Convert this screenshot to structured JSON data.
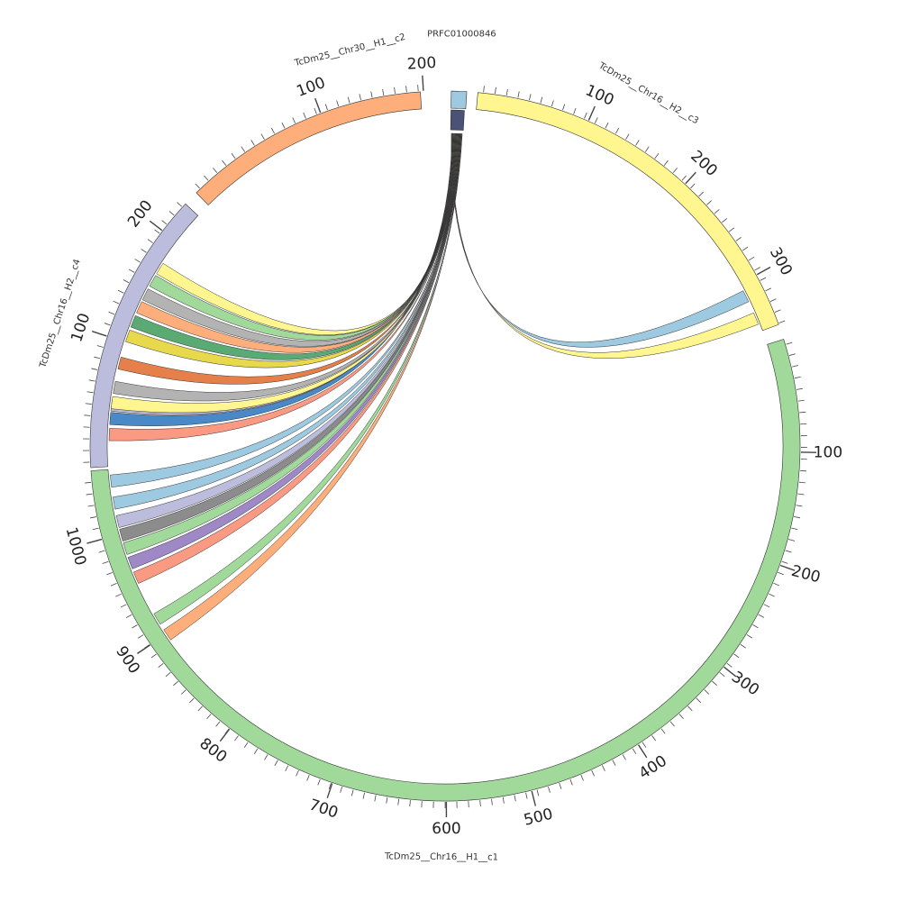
{
  "segments": [
    {
      "id": "c2",
      "label": "TcDm25__Chr30__H1__c2",
      "length": 230,
      "color": "#fdae7b",
      "major_ticks": [
        100,
        200
      ]
    },
    {
      "id": "q",
      "label": "PRFC01000846",
      "length": 18,
      "color": "#9ecae1",
      "major_ticks": []
    },
    {
      "id": "c3",
      "label": "TcDm25__Chr16__H2__c3",
      "length": 340,
      "color": "#fff68f",
      "major_ticks": [
        100,
        200,
        300
      ]
    },
    {
      "id": "c1",
      "label": "TcDm25__Chr16__H1__c1",
      "length": 1050,
      "color": "#a1d99b",
      "major_ticks": [
        100,
        200,
        300,
        400,
        500,
        600,
        700,
        800,
        900,
        1000
      ]
    },
    {
      "id": "c4",
      "label": "TcDm25__Chr16__H2__c4",
      "length": 230,
      "color": "#bcbddc",
      "major_ticks": [
        100,
        200
      ]
    }
  ],
  "links": [
    {
      "target": "c3",
      "pos": 306,
      "color": "#9ecae1"
    },
    {
      "target": "c3",
      "pos": 328,
      "color": "#fff68f"
    },
    {
      "target": "c2",
      "pos": 38,
      "color": "#bcbddc"
    },
    {
      "target": "c2",
      "pos": 20,
      "color": "#4a89c8"
    },
    {
      "target": "c4",
      "pos": 175,
      "color": "#fff68f"
    },
    {
      "target": "c4",
      "pos": 163,
      "color": "#a1d99b"
    },
    {
      "target": "c4",
      "pos": 150,
      "color": "#b3b3b3"
    },
    {
      "target": "c4",
      "pos": 138,
      "color": "#fdae7b"
    },
    {
      "target": "c4",
      "pos": 125,
      "color": "#5aab73"
    },
    {
      "target": "c4",
      "pos": 112,
      "color": "#e8d84c"
    },
    {
      "target": "c4",
      "pos": 88,
      "color": "#e6804a"
    },
    {
      "target": "c4",
      "pos": 67,
      "color": "#b3b3b3"
    },
    {
      "target": "c4",
      "pos": 54,
      "color": "#fff68f"
    },
    {
      "target": "c4",
      "pos": 27,
      "color": "#fb9a82"
    },
    {
      "target": "c1",
      "pos": 1045,
      "color": "#9ecae1"
    },
    {
      "target": "c1",
      "pos": 1080,
      "color": "#9ecae1"
    },
    {
      "target": "c1",
      "pos": 1108,
      "color": "#bcbddc"
    },
    {
      "target": "c1",
      "pos": 1128,
      "color": "#8c8c8c"
    },
    {
      "target": "c1",
      "pos": 1148,
      "color": "#a1d99b"
    },
    {
      "target": "c1",
      "pos": 1172,
      "color": "#9e88c6"
    },
    {
      "target": "c1",
      "pos": 1195,
      "color": "#fb9a82"
    },
    {
      "target": "c1",
      "pos": 1255,
      "color": "#a1d99b"
    },
    {
      "target": "c1",
      "pos": 1285,
      "color": "#fdae7b"
    }
  ]
}
